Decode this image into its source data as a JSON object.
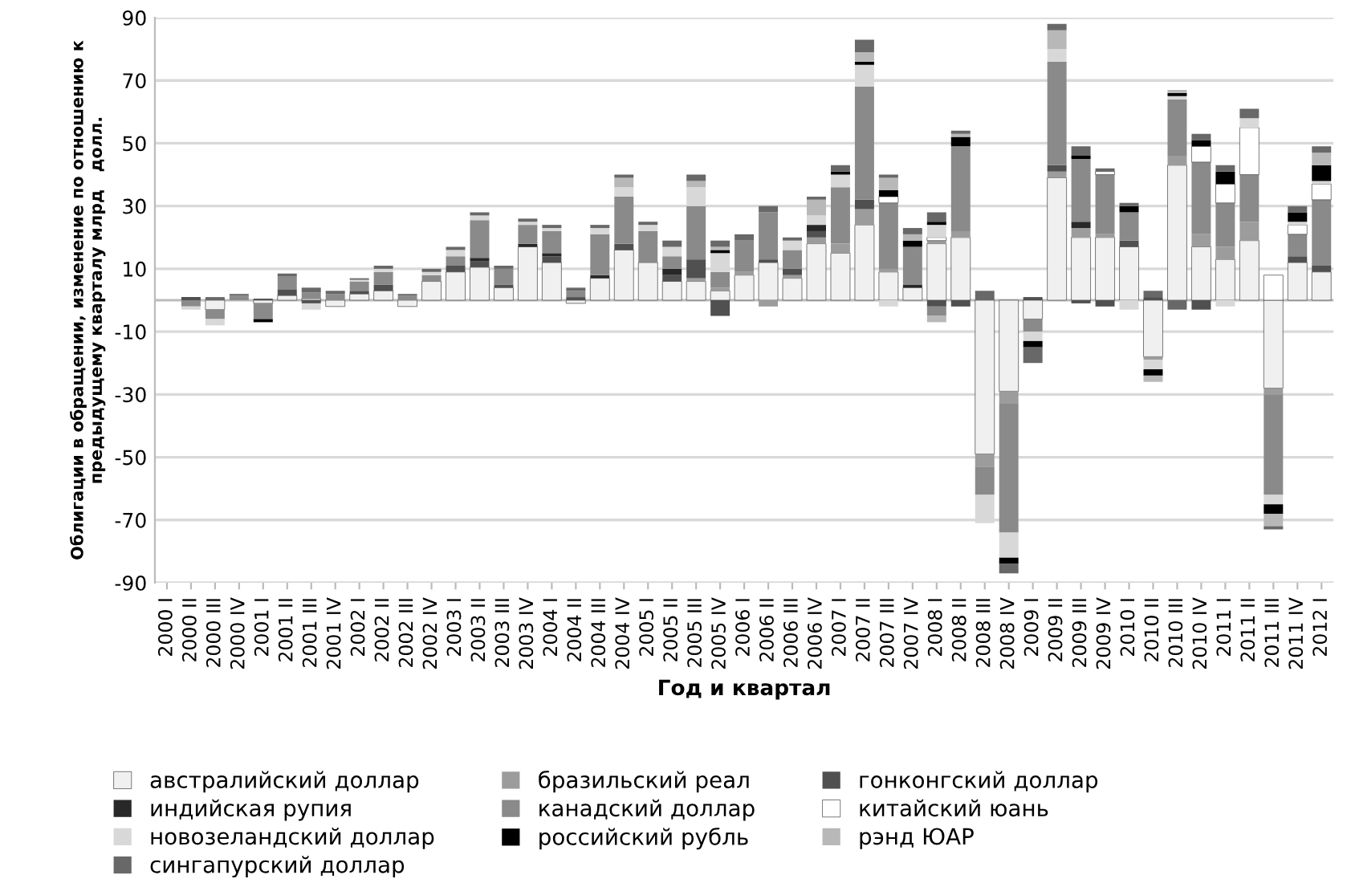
{
  "chart_data": {
    "type": "bar",
    "stacked": true,
    "xlabel": "Год и квартал",
    "ylabel": "Облигации в обращении, изменение по отношению к\nпредыдущему кварталу млрд   долл.",
    "categories": [
      "2000 I",
      "2000 II",
      "2000 III",
      "2000 IV",
      "2001 I",
      "2001 II",
      "2001 III",
      "2001 IV",
      "2002 I",
      "2002 II",
      "2002 III",
      "2002 IV",
      "2003 I",
      "2003 II",
      "2003 III",
      "2003 IV",
      "2004 I",
      "2004 II",
      "2004 III",
      "2004 IV",
      "2005 I",
      "2005 II",
      "2005 III",
      "2005 IV",
      "2006 I",
      "2006 II",
      "2006 III",
      "2006 IV",
      "2007 I",
      "2007 II",
      "2007 III",
      "2007 IV",
      "2008 I",
      "2008 II",
      "2008 III",
      "2008 IV",
      "2009 I",
      "2009 II",
      "2009 III",
      "2009 IV",
      "2010 I",
      "2010 II",
      "2010 III",
      "2010 IV",
      "2011 I",
      "2011 II",
      "2011 III",
      "2011 IV",
      "2012 I"
    ],
    "series": [
      {
        "name": "австралийский доллар",
        "color": "#f0f0f0",
        "values": [
          null,
          0,
          -3,
          0,
          -1,
          1.5,
          0.5,
          -2,
          2,
          3,
          -2,
          6,
          9,
          10.5,
          4,
          17,
          12,
          -1,
          7,
          16,
          12,
          6,
          6,
          3,
          8,
          12,
          7,
          18,
          15,
          24,
          9,
          4,
          18,
          20,
          -49,
          -29,
          -6,
          39,
          20,
          20,
          17,
          -18,
          43,
          17,
          13,
          19,
          -28,
          12,
          9
        ]
      },
      {
        "name": "бразильский реал",
        "color": "#9c9c9c",
        "values": [
          null,
          0,
          0,
          0,
          0,
          0,
          0,
          0,
          0,
          0,
          0,
          0,
          0,
          0,
          0,
          0,
          0,
          0,
          0,
          0,
          0,
          0,
          1,
          1,
          1,
          -2,
          1,
          2,
          3,
          5,
          1,
          0,
          1,
          2,
          -4,
          -4,
          0,
          2,
          3,
          1,
          0,
          -1,
          3,
          4,
          4,
          6,
          -2,
          0,
          0
        ]
      },
      {
        "name": "гонконгский доллар",
        "color": "#505050",
        "values": [
          null,
          1,
          0,
          0,
          0.5,
          2,
          -1,
          0,
          1,
          2,
          0,
          0,
          2,
          2,
          1,
          0,
          2,
          1,
          0,
          2,
          0,
          2,
          6,
          -5,
          0,
          1,
          2,
          2,
          0,
          3,
          0,
          0,
          -2,
          -2,
          0,
          0,
          1,
          2,
          -1,
          -2,
          2,
          1,
          0,
          -3,
          0,
          0,
          0,
          2,
          2
        ]
      },
      {
        "name": "индийская рупия",
        "color": "#282828",
        "values": [
          null,
          0,
          0,
          0,
          0,
          0,
          0,
          0,
          0,
          0,
          0,
          0,
          0,
          1,
          0,
          1,
          1,
          0,
          1,
          0,
          0,
          2,
          0,
          0,
          0,
          0,
          0,
          2,
          0,
          0,
          0,
          1,
          0,
          0,
          0,
          0,
          0,
          0,
          2,
          0,
          0,
          0,
          0,
          0,
          0,
          0,
          0,
          0,
          0
        ]
      },
      {
        "name": "канадский доллар",
        "color": "#8a8a8a",
        "values": [
          null,
          -2,
          -3,
          1.5,
          -5,
          4,
          2,
          2,
          3,
          4,
          1.5,
          2,
          3,
          12,
          5,
          6,
          7,
          2,
          13,
          15,
          10,
          4,
          17,
          5,
          10,
          15,
          6,
          0,
          18,
          36,
          21,
          12,
          -3,
          27,
          -9,
          -41,
          -4,
          33,
          20,
          19,
          9,
          0,
          18,
          23,
          14,
          15,
          -32,
          7,
          21
        ]
      },
      {
        "name": "китайский юань",
        "color": "#ffffff",
        "values": [
          null,
          0,
          0,
          0,
          0,
          0,
          0,
          0,
          0,
          0,
          0,
          0,
          0,
          0,
          0,
          0,
          0,
          0,
          0,
          0,
          0,
          0,
          0,
          0,
          0,
          0,
          0,
          0,
          0,
          0,
          2,
          0,
          1,
          0,
          0,
          0,
          0,
          0,
          0,
          1,
          0,
          0,
          0,
          5,
          6,
          15,
          8,
          3,
          5
        ]
      },
      {
        "name": "новозеландский доллар",
        "color": "#d8d8d8",
        "values": [
          null,
          -1,
          -2,
          0,
          0,
          0,
          -2,
          0,
          0.5,
          1,
          0,
          1,
          2,
          1.5,
          0,
          1,
          1,
          0,
          2,
          3,
          2,
          3,
          6,
          6,
          0,
          0,
          3,
          3,
          4,
          7,
          -2,
          0,
          4,
          0,
          -9,
          -8,
          -3,
          4,
          0,
          0,
          -3,
          -3,
          1,
          0,
          -2,
          3,
          -3,
          1,
          1
        ]
      },
      {
        "name": "российский рубль",
        "color": "#000000",
        "values": [
          null,
          0,
          0,
          0,
          -1,
          0,
          0,
          0,
          0,
          0,
          0,
          0,
          0,
          0,
          0,
          0,
          0,
          0,
          0,
          0,
          0,
          0,
          0,
          1,
          0,
          0,
          0,
          0,
          1,
          1,
          2,
          2,
          1,
          3,
          0,
          -2,
          -2,
          0,
          1,
          0,
          2,
          -2,
          1,
          2,
          4,
          0,
          -3,
          3,
          5
        ]
      },
      {
        "name": "рэнд ЮАР",
        "color": "#b8b8b8",
        "values": [
          null,
          0,
          0,
          0,
          0,
          0,
          0,
          0,
          0,
          0,
          0,
          0,
          0,
          0,
          0,
          0,
          0,
          0,
          0,
          3,
          0,
          0,
          2,
          1,
          0,
          0,
          0,
          5,
          0,
          3,
          4,
          2,
          -2,
          1,
          0,
          0,
          0,
          6,
          0,
          0,
          0,
          -2,
          1,
          0,
          0,
          0,
          -4,
          0,
          4
        ]
      },
      {
        "name": "сингапурский доллар",
        "color": "#686868",
        "values": [
          null,
          0,
          1,
          0.5,
          0,
          1,
          1.5,
          1,
          0.5,
          1,
          0.5,
          1,
          1,
          1,
          1,
          1,
          1,
          1,
          1,
          1,
          1,
          2,
          2,
          2,
          2,
          2,
          1,
          1,
          2,
          4,
          1,
          2,
          3,
          1,
          3,
          -3,
          -5,
          2,
          3,
          1,
          1,
          2,
          -3,
          2,
          2,
          3,
          -1,
          2,
          2
        ]
      }
    ],
    "ylim": [
      -90,
      90
    ],
    "yticks": [
      -90,
      -70,
      -50,
      -30,
      -10,
      10,
      30,
      50,
      70,
      90
    ],
    "grid": "y",
    "legend": "bottom"
  }
}
